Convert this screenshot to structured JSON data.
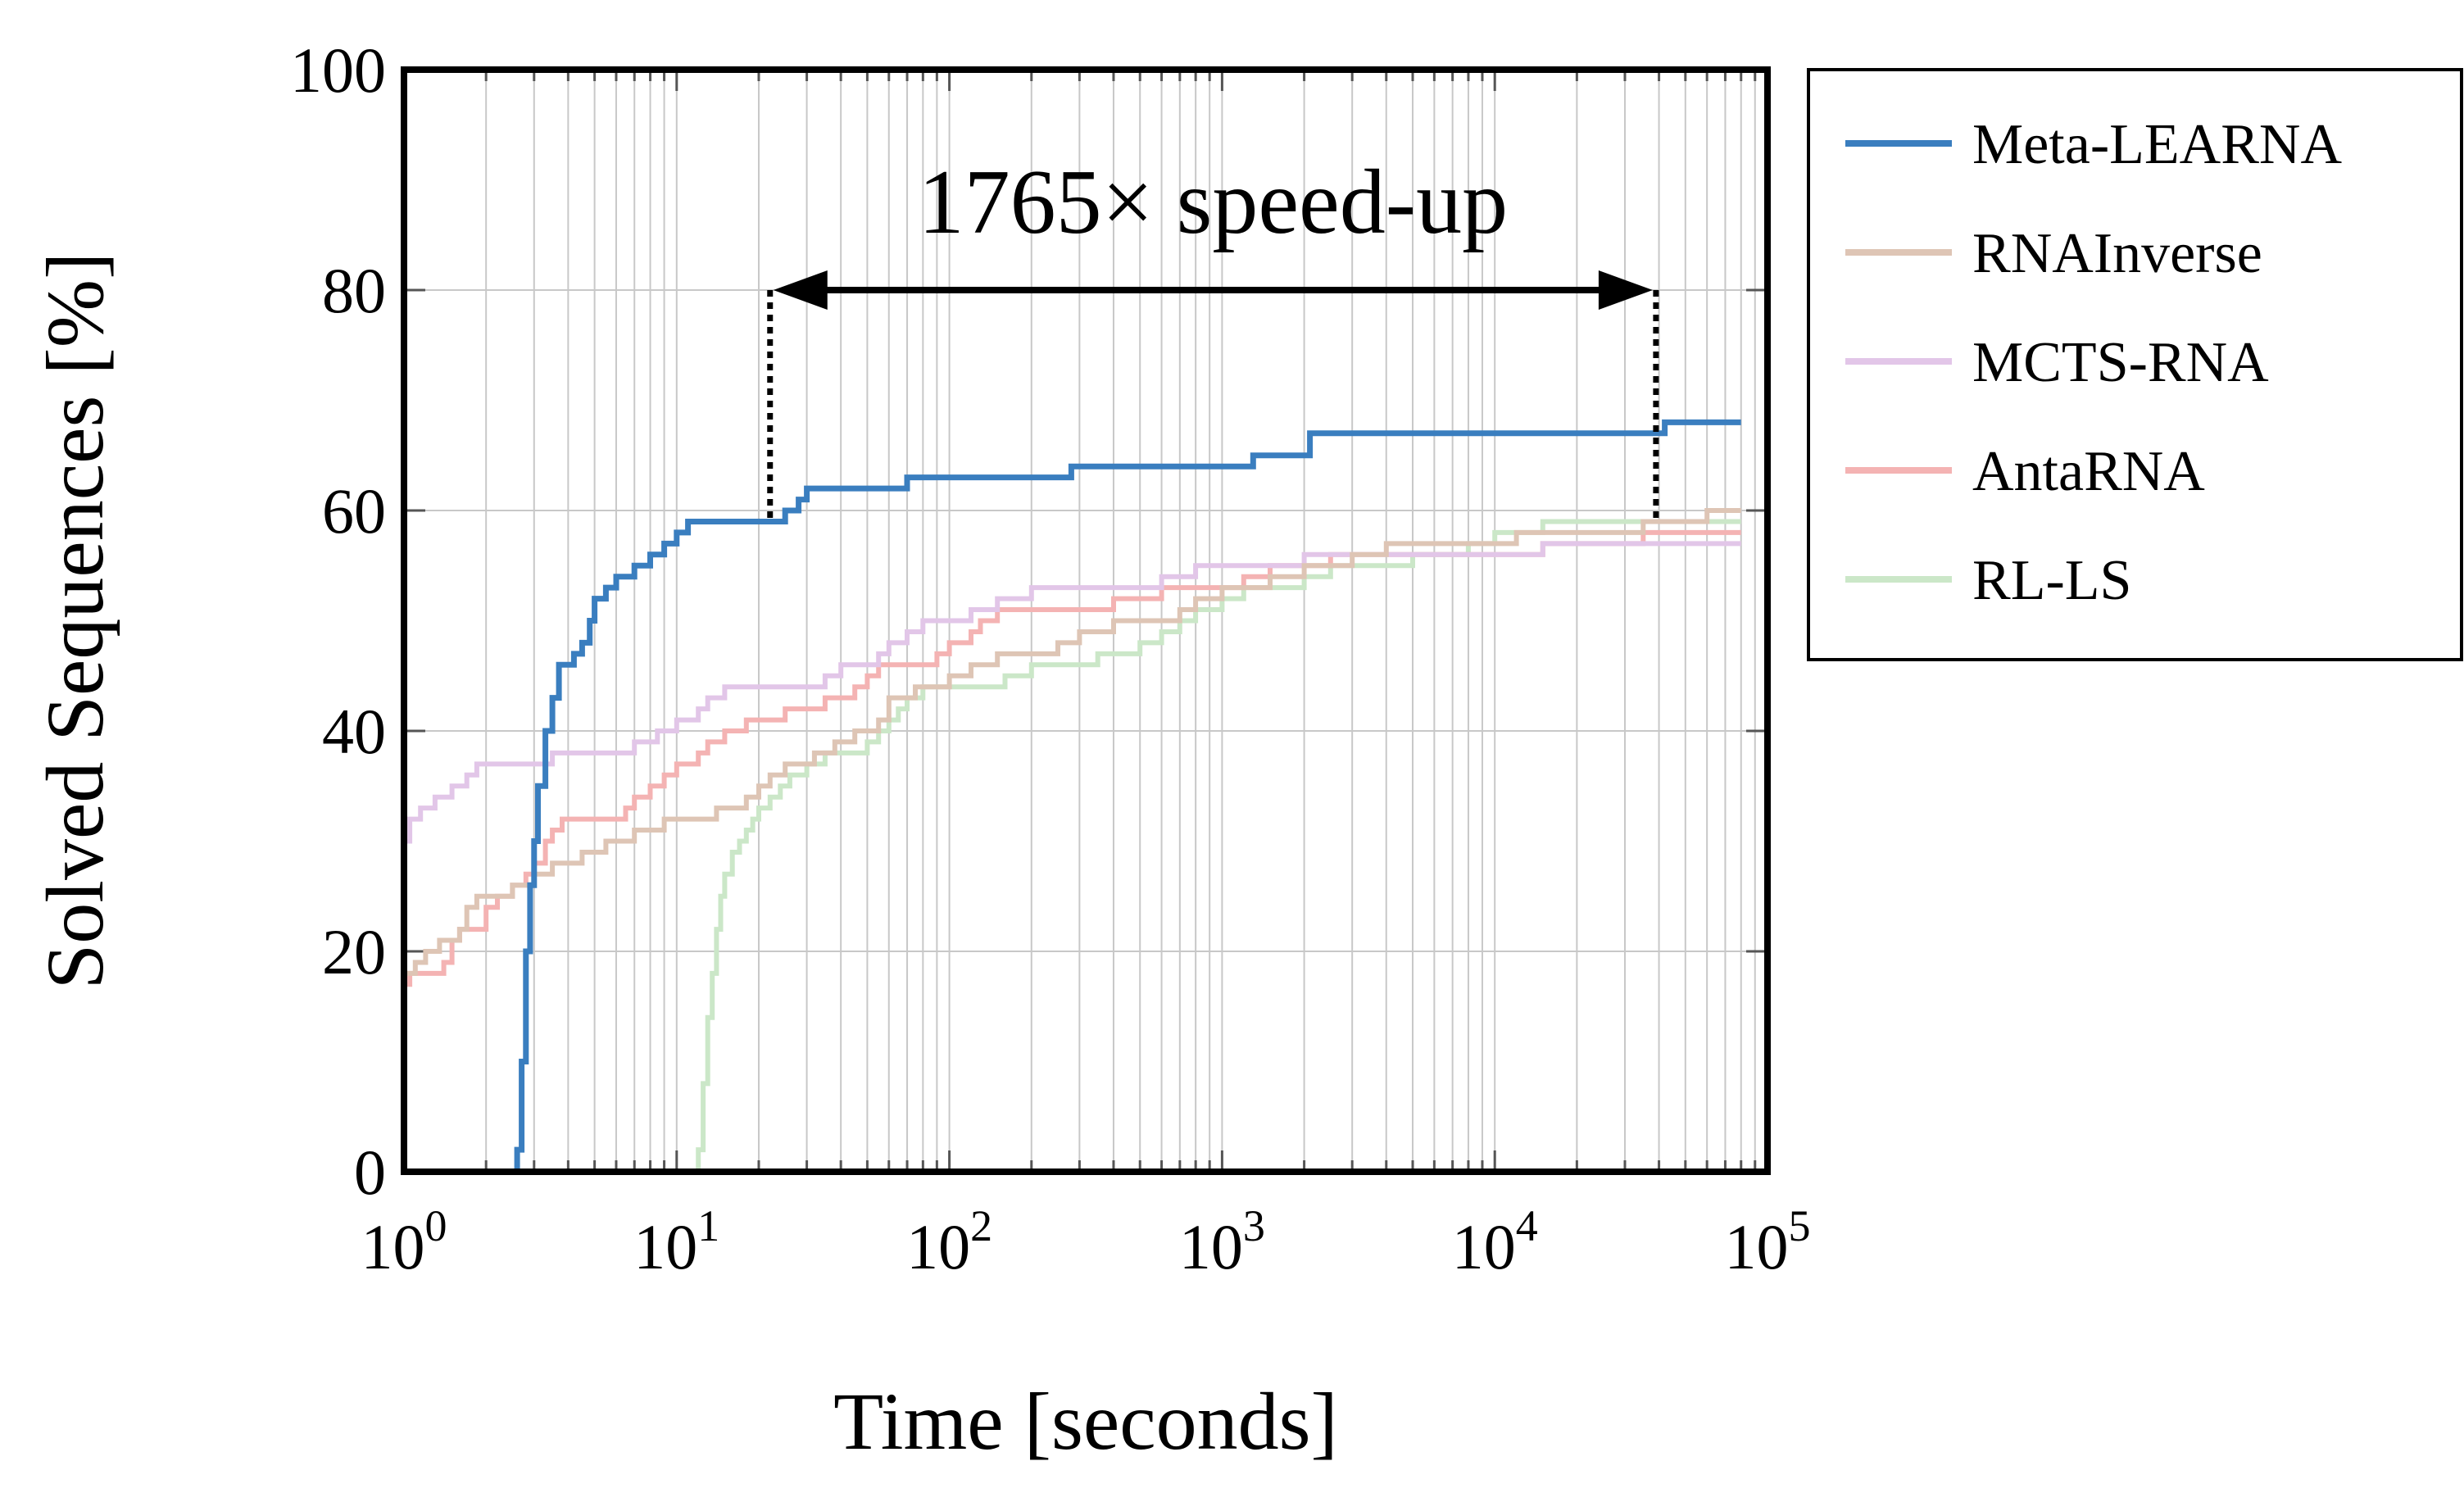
{
  "chart_data": {
    "type": "line",
    "xlabel": "Time [seconds]",
    "ylabel": "Solved Sequences [%]",
    "x_scale": "log",
    "xlim": [
      1,
      100000
    ],
    "ylim": [
      0,
      100
    ],
    "x_ticks": [
      {
        "base": "10",
        "exp": "0",
        "value": 1
      },
      {
        "base": "10",
        "exp": "1",
        "value": 10
      },
      {
        "base": "10",
        "exp": "2",
        "value": 100
      },
      {
        "base": "10",
        "exp": "3",
        "value": 1000
      },
      {
        "base": "10",
        "exp": "4",
        "value": 10000
      },
      {
        "base": "10",
        "exp": "5",
        "value": 100000
      }
    ],
    "y_ticks": [
      "0",
      "20",
      "40",
      "60",
      "80",
      "100"
    ],
    "grid": true,
    "legend_position": "outside-right",
    "annotation": {
      "text": "1765× speed-up",
      "x_start": 22,
      "x_end": 39000,
      "y": 80
    },
    "series": [
      {
        "name": "Meta-LEARNA",
        "color": "#3a7ebf",
        "points": [
          [
            1,
            0
          ],
          [
            2.5,
            0
          ],
          [
            2.6,
            2
          ],
          [
            2.7,
            10
          ],
          [
            2.8,
            20
          ],
          [
            2.9,
            26
          ],
          [
            3.0,
            30
          ],
          [
            3.1,
            35
          ],
          [
            3.3,
            40
          ],
          [
            3.5,
            43
          ],
          [
            3.7,
            46
          ],
          [
            4.2,
            47
          ],
          [
            4.5,
            48
          ],
          [
            4.8,
            50
          ],
          [
            5.0,
            52
          ],
          [
            5.5,
            53
          ],
          [
            6.0,
            54
          ],
          [
            7.0,
            55
          ],
          [
            8.0,
            56
          ],
          [
            9.0,
            57
          ],
          [
            10,
            58
          ],
          [
            11,
            59
          ],
          [
            20,
            59
          ],
          [
            22,
            59
          ],
          [
            25,
            60
          ],
          [
            28,
            61
          ],
          [
            30,
            62
          ],
          [
            60,
            62
          ],
          [
            70,
            63
          ],
          [
            250,
            63
          ],
          [
            280,
            64
          ],
          [
            1200,
            64
          ],
          [
            1300,
            65
          ],
          [
            2000,
            65
          ],
          [
            2100,
            67
          ],
          [
            40000,
            67
          ],
          [
            42000,
            68
          ],
          [
            80000,
            68
          ]
        ]
      },
      {
        "name": "RNAInverse",
        "color": "#dec5b5",
        "points": [
          [
            1,
            18
          ],
          [
            1.1,
            19
          ],
          [
            1.2,
            20
          ],
          [
            1.35,
            21
          ],
          [
            1.6,
            22
          ],
          [
            1.7,
            24
          ],
          [
            1.85,
            25
          ],
          [
            2.2,
            25
          ],
          [
            2.5,
            26
          ],
          [
            3.0,
            27
          ],
          [
            3.5,
            28
          ],
          [
            4.5,
            29
          ],
          [
            5.5,
            30
          ],
          [
            7,
            31
          ],
          [
            9,
            32
          ],
          [
            14,
            33
          ],
          [
            18,
            34
          ],
          [
            20,
            35
          ],
          [
            22,
            36
          ],
          [
            25,
            37
          ],
          [
            32,
            38
          ],
          [
            38,
            39
          ],
          [
            45,
            40
          ],
          [
            55,
            41
          ],
          [
            60,
            43
          ],
          [
            75,
            44
          ],
          [
            100,
            45
          ],
          [
            120,
            46
          ],
          [
            150,
            47
          ],
          [
            250,
            48
          ],
          [
            300,
            49
          ],
          [
            400,
            50
          ],
          [
            500,
            50
          ],
          [
            700,
            51
          ],
          [
            800,
            52
          ],
          [
            1000,
            53
          ],
          [
            1500,
            54
          ],
          [
            2000,
            55
          ],
          [
            3000,
            56
          ],
          [
            4000,
            57
          ],
          [
            10000,
            57
          ],
          [
            12000,
            58
          ],
          [
            30000,
            58
          ],
          [
            35000,
            59
          ],
          [
            50000,
            59
          ],
          [
            60000,
            60
          ],
          [
            80000,
            60
          ]
        ]
      },
      {
        "name": "MCTS-RNA",
        "color": "#e2c6e8",
        "points": [
          [
            1,
            30
          ],
          [
            1.05,
            32
          ],
          [
            1.15,
            33
          ],
          [
            1.3,
            34
          ],
          [
            1.5,
            35
          ],
          [
            1.7,
            36
          ],
          [
            1.85,
            37
          ],
          [
            3.0,
            37
          ],
          [
            3.5,
            38
          ],
          [
            6.5,
            38
          ],
          [
            7.0,
            39
          ],
          [
            8.5,
            40
          ],
          [
            10,
            41
          ],
          [
            12,
            42
          ],
          [
            13,
            43
          ],
          [
            15,
            44
          ],
          [
            30,
            44
          ],
          [
            35,
            45
          ],
          [
            40,
            46
          ],
          [
            55,
            47
          ],
          [
            60,
            48
          ],
          [
            70,
            49
          ],
          [
            80,
            50
          ],
          [
            100,
            50
          ],
          [
            120,
            51
          ],
          [
            150,
            52
          ],
          [
            200,
            53
          ],
          [
            500,
            53
          ],
          [
            600,
            54
          ],
          [
            700,
            54
          ],
          [
            800,
            55
          ],
          [
            1500,
            55
          ],
          [
            2000,
            56
          ],
          [
            10000,
            56
          ],
          [
            15000,
            57
          ],
          [
            80000,
            57
          ]
        ]
      },
      {
        "name": "AntaRNA",
        "color": "#f4b3b3",
        "points": [
          [
            1,
            17
          ],
          [
            1.05,
            18
          ],
          [
            1.2,
            18
          ],
          [
            1.4,
            19
          ],
          [
            1.5,
            21
          ],
          [
            1.6,
            22
          ],
          [
            1.9,
            22
          ],
          [
            2.0,
            24
          ],
          [
            2.2,
            25
          ],
          [
            2.5,
            26
          ],
          [
            2.8,
            27
          ],
          [
            3.0,
            28
          ],
          [
            3.3,
            30
          ],
          [
            3.5,
            31
          ],
          [
            3.8,
            32
          ],
          [
            6,
            32
          ],
          [
            6.5,
            33
          ],
          [
            7,
            34
          ],
          [
            8,
            35
          ],
          [
            9,
            36
          ],
          [
            10,
            37
          ],
          [
            12,
            38
          ],
          [
            13,
            39
          ],
          [
            15,
            40
          ],
          [
            18,
            41
          ],
          [
            25,
            42
          ],
          [
            30,
            42
          ],
          [
            35,
            43
          ],
          [
            45,
            44
          ],
          [
            50,
            45
          ],
          [
            55,
            46
          ],
          [
            80,
            46
          ],
          [
            90,
            47
          ],
          [
            100,
            48
          ],
          [
            120,
            49
          ],
          [
            130,
            50
          ],
          [
            150,
            51
          ],
          [
            300,
            51
          ],
          [
            400,
            52
          ],
          [
            500,
            52
          ],
          [
            600,
            53
          ],
          [
            1000,
            53
          ],
          [
            1200,
            54
          ],
          [
            1500,
            55
          ],
          [
            2000,
            55
          ],
          [
            2500,
            56
          ],
          [
            10000,
            56
          ],
          [
            15000,
            57
          ],
          [
            30000,
            57
          ],
          [
            35000,
            58
          ],
          [
            80000,
            58
          ]
        ]
      },
      {
        "name": "RL-LS",
        "color": "#cbe7c8",
        "points": [
          [
            1,
            0
          ],
          [
            11.5,
            0
          ],
          [
            12,
            2
          ],
          [
            12.5,
            8
          ],
          [
            13,
            14
          ],
          [
            13.5,
            18
          ],
          [
            14,
            22
          ],
          [
            14.5,
            25
          ],
          [
            15,
            27
          ],
          [
            16,
            29
          ],
          [
            17,
            30
          ],
          [
            18,
            31
          ],
          [
            19,
            32
          ],
          [
            20,
            33
          ],
          [
            22,
            34
          ],
          [
            24,
            35
          ],
          [
            26,
            36
          ],
          [
            30,
            37
          ],
          [
            35,
            38
          ],
          [
            45,
            38
          ],
          [
            50,
            39
          ],
          [
            55,
            40
          ],
          [
            60,
            41
          ],
          [
            65,
            42
          ],
          [
            70,
            43
          ],
          [
            80,
            44
          ],
          [
            150,
            44
          ],
          [
            160,
            45
          ],
          [
            200,
            46
          ],
          [
            300,
            46
          ],
          [
            350,
            47
          ],
          [
            500,
            48
          ],
          [
            600,
            49
          ],
          [
            700,
            50
          ],
          [
            800,
            51
          ],
          [
            1000,
            52
          ],
          [
            1200,
            53
          ],
          [
            1800,
            53
          ],
          [
            2000,
            54
          ],
          [
            2500,
            55
          ],
          [
            4000,
            55
          ],
          [
            5000,
            56
          ],
          [
            8000,
            57
          ],
          [
            10000,
            58
          ],
          [
            15000,
            59
          ],
          [
            80000,
            59
          ]
        ]
      }
    ]
  }
}
